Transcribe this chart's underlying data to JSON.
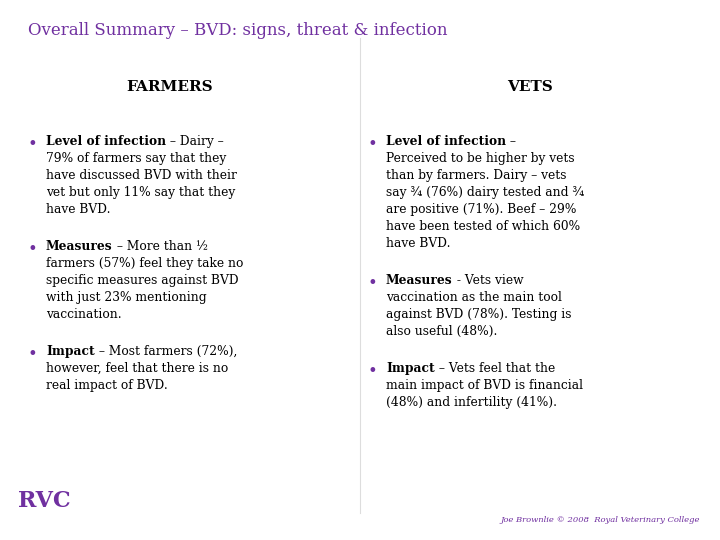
{
  "title": "Overall Summary – BVD: signs, threat & infection",
  "title_color": "#7030A0",
  "bg_color": "#FFFFFF",
  "farmers_header": "FARMERS",
  "vets_header": "VETS",
  "header_color": "#000000",
  "bullet_color": "#7030A0",
  "bullet_char": "•",
  "body_color": "#000000",
  "footer": "Joe Brownlie © 2008  Royal Veterinary College",
  "footer_color": "#7030A0",
  "rvc_color": "#7030A0",
  "farmers_bullets": [
    {
      "bold_part": "Level of infection",
      "rest": " – Dairy –\n79% of farmers say that they\nhave discussed BVD with their\nvet but only 11% say that they\nhave BVD."
    },
    {
      "bold_part": "Measures",
      "rest": " – More than ½\nfarmers (57%) feel they take no\nspecific measures against BVD\nwith just 23% mentioning\nvaccination."
    },
    {
      "bold_part": "Impact",
      "rest": " – Most farmers (72%),\nhowever, feel that there is no\nreal impact of BVD."
    }
  ],
  "vets_bullets": [
    {
      "bold_part": "Level of infection",
      "rest": " –\nPerceived to be higher by vets\nthan by farmers. Dairy – vets\nsay ¾ (76%) dairy tested and ¾\nare positive (71%). Beef – 29%\nhave been tested of which 60%\nhave BVD."
    },
    {
      "bold_part": "Measures",
      "rest": " - Vets view\nvaccination as the main tool\nagainst BVD (78%). Testing is\nalso useful (48%)."
    },
    {
      "bold_part": "Impact",
      "rest": " – Vets feel that the\nmain impact of BVD is financial\n(48%) and infertility (41%)."
    }
  ]
}
